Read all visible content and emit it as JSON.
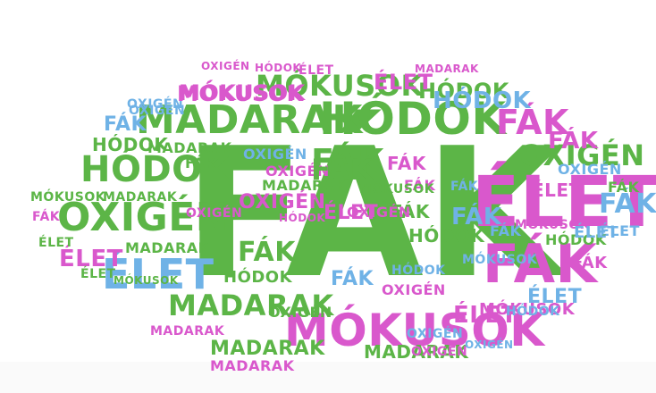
{
  "colors": {
    "green": "#5cb547",
    "magenta": "#d958cc",
    "blue": "#6fb2e6",
    "background": "#ffffff"
  },
  "words": [
    {
      "text": "FÁK",
      "color": "green"
    },
    {
      "text": "ÉLET",
      "color": "magenta"
    },
    {
      "text": "HÓDOK",
      "color": "green"
    },
    {
      "text": "MADARAK",
      "color": "green"
    },
    {
      "text": "MÓKUSOK",
      "color": "magenta"
    },
    {
      "text": "OXIGÉN",
      "color": "green"
    },
    {
      "text": "FÁK",
      "color": "magenta"
    },
    {
      "text": "FÁK",
      "color": "magenta"
    },
    {
      "text": "ÉLET",
      "color": "blue"
    },
    {
      "text": "HÓDOK",
      "color": "green"
    },
    {
      "text": "MADARAK",
      "color": "green"
    },
    {
      "text": "MÓKUSOK",
      "color": "green"
    },
    {
      "text": "OXIGÉN",
      "color": "green"
    },
    {
      "text": "MÓKUSOK",
      "color": "magenta"
    },
    {
      "text": "HÓDOK",
      "color": "green"
    },
    {
      "text": "ÉLET",
      "color": "magenta"
    },
    {
      "text": "FÁK",
      "color": "green"
    },
    {
      "text": "FÁK",
      "color": "blue"
    },
    {
      "text": "MADARAK",
      "color": "green"
    },
    {
      "text": "MADARAK",
      "color": "green"
    },
    {
      "text": "OXIGÉN",
      "color": "blue"
    },
    {
      "text": "OXIGÉN",
      "color": "magenta"
    },
    {
      "text": "MÓKUSOK",
      "color": "magenta"
    },
    {
      "text": "HÓDOK",
      "color": "green"
    },
    {
      "text": "FÁK",
      "color": "magenta"
    },
    {
      "text": "FÁK",
      "color": "green"
    },
    {
      "text": "FÁK",
      "color": "green"
    },
    {
      "text": "ÉLET",
      "color": "magenta"
    },
    {
      "text": "ÉLET",
      "color": "magenta"
    },
    {
      "text": "ÉLET",
      "color": "magenta"
    },
    {
      "text": "ÉLET",
      "color": "blue"
    },
    {
      "text": "ÉLET",
      "color": "blue"
    },
    {
      "text": "FÁK",
      "color": "blue"
    },
    {
      "text": "FÁK",
      "color": "blue"
    },
    {
      "text": "FÁK",
      "color": "blue"
    },
    {
      "text": "FÁK",
      "color": "magenta"
    },
    {
      "text": "FÁK",
      "color": "magenta"
    },
    {
      "text": "FÁK",
      "color": "magenta"
    },
    {
      "text": "FÁK",
      "color": "green"
    },
    {
      "text": "FÁK",
      "color": "green"
    },
    {
      "text": "HÓDOK",
      "color": "green"
    },
    {
      "text": "HÓDOK",
      "color": "green"
    },
    {
      "text": "HÓDOK",
      "color": "blue"
    },
    {
      "text": "HÓDOK",
      "color": "blue"
    },
    {
      "text": "HÓDOK",
      "color": "magenta"
    },
    {
      "text": "HÓDOK",
      "color": "green"
    },
    {
      "text": "OXIGÉN",
      "color": "magenta"
    },
    {
      "text": "OXIGÉN",
      "color": "magenta"
    },
    {
      "text": "OXIGÉN",
      "color": "blue"
    },
    {
      "text": "OXIGÉN",
      "color": "magenta"
    },
    {
      "text": "OXIGÉN",
      "color": "blue"
    },
    {
      "text": "OXIGÉN",
      "color": "green"
    },
    {
      "text": "OXIGÉN",
      "color": "blue"
    },
    {
      "text": "OXIGÉN",
      "color": "magenta"
    },
    {
      "text": "OXIGÉN",
      "color": "magenta"
    },
    {
      "text": "OXIGÉN",
      "color": "blue"
    },
    {
      "text": "MÓKUSOK",
      "color": "magenta"
    },
    {
      "text": "MÓKUSOK",
      "color": "green"
    },
    {
      "text": "MÓKUSOK",
      "color": "blue"
    },
    {
      "text": "MÓKUSOK",
      "color": "green"
    },
    {
      "text": "MÓKUSOK",
      "color": "magenta"
    },
    {
      "text": "MADARAK",
      "color": "green"
    },
    {
      "text": "MADARAK",
      "color": "magenta"
    },
    {
      "text": "MADARAK",
      "color": "magenta"
    },
    {
      "text": "MADARAK",
      "color": "green"
    },
    {
      "text": "MADARAK",
      "color": "magenta"
    },
    {
      "text": "MADARAK",
      "color": "green"
    },
    {
      "text": "ÉLET",
      "color": "magenta"
    },
    {
      "text": "ÉLET",
      "color": "green"
    },
    {
      "text": "ÉLET",
      "color": "blue"
    },
    {
      "text": "ÉLET",
      "color": "magenta"
    },
    {
      "text": "ÉLET",
      "color": "green"
    },
    {
      "text": "FÁK",
      "color": "blue"
    },
    {
      "text": "FÁK",
      "color": "magenta"
    },
    {
      "text": "FÁK",
      "color": "green"
    },
    {
      "text": "FÁK",
      "color": "blue"
    },
    {
      "text": "HÓDOK",
      "color": "blue"
    },
    {
      "text": "HÓDOK",
      "color": "magenta"
    },
    {
      "text": "OXIGÉN",
      "color": "magenta"
    },
    {
      "text": "OXIGÉN",
      "color": "blue"
    },
    {
      "text": "MADARAK",
      "color": "green"
    },
    {
      "text": "MÓKUSOK",
      "color": "green"
    }
  ]
}
